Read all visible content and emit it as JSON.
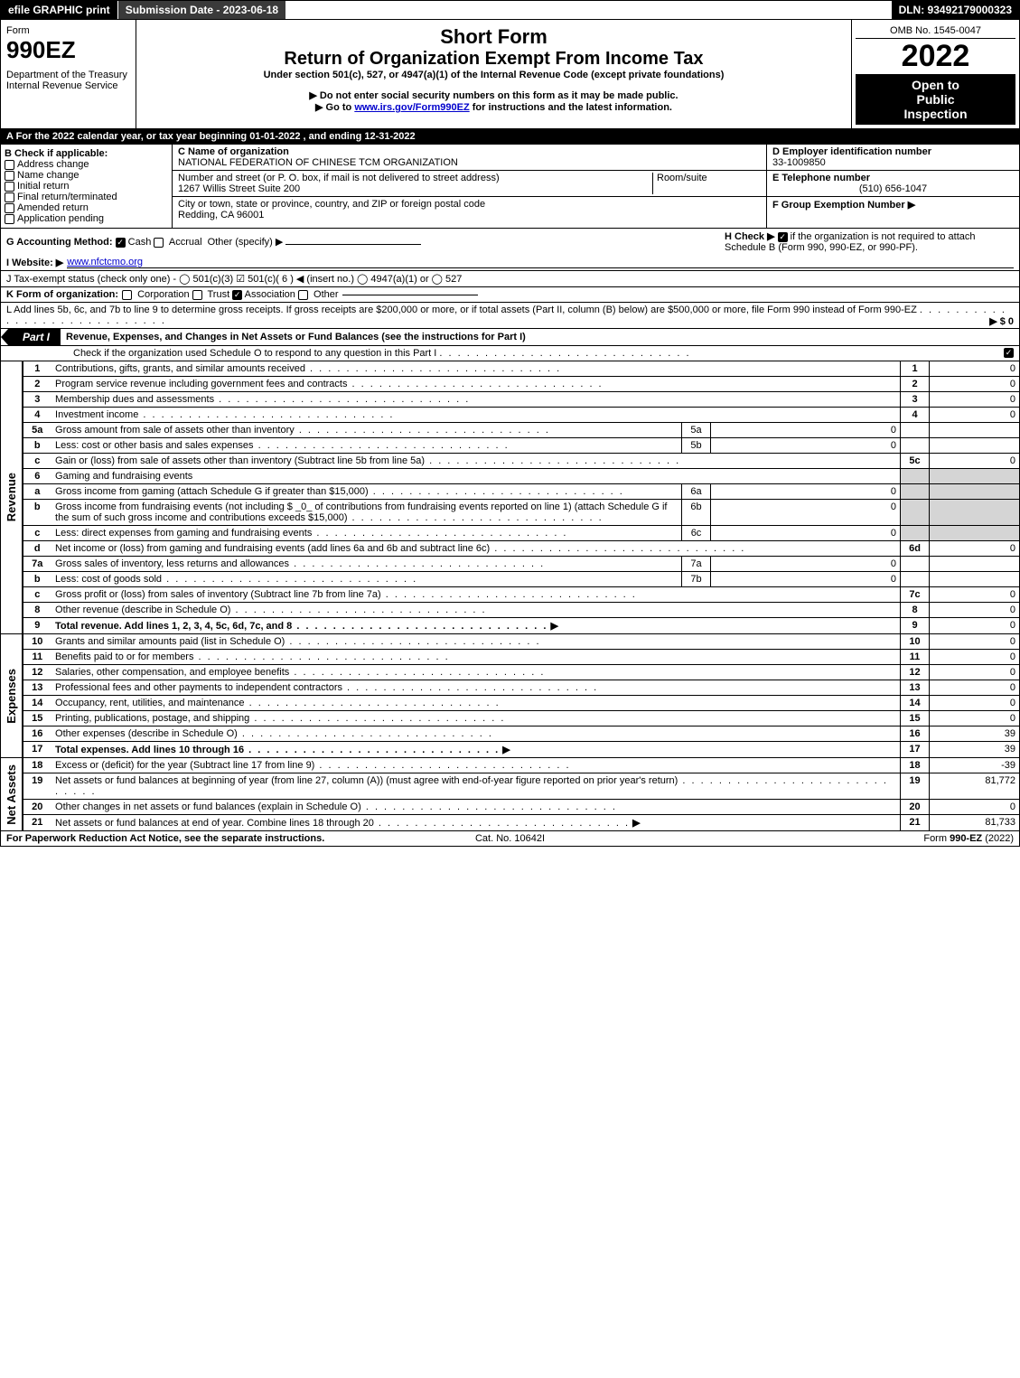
{
  "topbar": {
    "efile": "efile GRAPHIC print",
    "submission_label": "Submission Date - 2023-06-18",
    "dln": "DLN: 93492179000323"
  },
  "header": {
    "form_label": "Form",
    "form_number": "990EZ",
    "dept": "Department of the Treasury",
    "irs": "Internal Revenue Service",
    "short_form": "Short Form",
    "title": "Return of Organization Exempt From Income Tax",
    "subtitle": "Under section 501(c), 527, or 4947(a)(1) of the Internal Revenue Code (except private foundations)",
    "note1": "▶ Do not enter social security numbers on this form as it may be made public.",
    "note2_pre": "▶ Go to ",
    "note2_link": "www.irs.gov/Form990EZ",
    "note2_post": " for instructions and the latest information.",
    "omb": "OMB No. 1545-0047",
    "year": "2022",
    "inspect1": "Open to",
    "inspect2": "Public",
    "inspect3": "Inspection"
  },
  "lineA": "A  For the 2022 calendar year, or tax year beginning 01-01-2022 , and ending 12-31-2022",
  "sectionB": {
    "title": "B  Check if applicable:",
    "items": [
      "Address change",
      "Name change",
      "Initial return",
      "Final return/terminated",
      "Amended return",
      "Application pending"
    ],
    "c_label": "C Name of organization",
    "org_name": "NATIONAL FEDERATION OF CHINESE TCM ORGANIZATION",
    "street_label": "Number and street (or P. O. box, if mail is not delivered to street address)",
    "street": "1267 Willis Street Suite 200",
    "room_label": "Room/suite",
    "city_label": "City or town, state or province, country, and ZIP or foreign postal code",
    "city": "Redding, CA  96001",
    "d_label": "D Employer identification number",
    "ein": "33-1009850",
    "e_label": "E Telephone number",
    "phone": "(510) 656-1047",
    "f_label": "F Group Exemption Number  ▶"
  },
  "lineG": {
    "label": "G Accounting Method:",
    "cash": "Cash",
    "accrual": "Accrual",
    "other": "Other (specify) ▶"
  },
  "lineH": {
    "pre": "H  Check ▶ ",
    "post": " if the organization is not required to attach Schedule B (Form 990, 990-EZ, or 990-PF)."
  },
  "lineI": {
    "label": "I Website: ▶",
    "url": "www.nfctcmo.org"
  },
  "lineJ": "J Tax-exempt status (check only one) -  ◯ 501(c)(3)  ☑ 501(c)( 6 ) ◀ (insert no.)  ◯ 4947(a)(1) or  ◯ 527",
  "lineK": {
    "label": "K Form of organization:",
    "opts": [
      "Corporation",
      "Trust",
      "Association",
      "Other"
    ]
  },
  "lineL": {
    "text": "L Add lines 5b, 6c, and 7b to line 9 to determine gross receipts. If gross receipts are $200,000 or more, or if total assets (Part II, column (B) below) are $500,000 or more, file Form 990 instead of Form 990-EZ",
    "val": "▶ $ 0"
  },
  "part1": {
    "tab": "Part I",
    "title": "Revenue, Expenses, and Changes in Net Assets or Fund Balances (see the instructions for Part I)",
    "check_line": "Check if the organization used Schedule O to respond to any question in this Part I"
  },
  "sections": {
    "revenue": "Revenue",
    "expenses": "Expenses",
    "netassets": "Net Assets"
  },
  "lines": [
    {
      "n": "1",
      "desc": "Contributions, gifts, grants, and similar amounts received",
      "num": "1",
      "val": "0"
    },
    {
      "n": "2",
      "desc": "Program service revenue including government fees and contracts",
      "num": "2",
      "val": "0"
    },
    {
      "n": "3",
      "desc": "Membership dues and assessments",
      "num": "3",
      "val": "0"
    },
    {
      "n": "4",
      "desc": "Investment income",
      "num": "4",
      "val": "0"
    },
    {
      "n": "5a",
      "desc": "Gross amount from sale of assets other than inventory",
      "sub": "5a",
      "subval": "0"
    },
    {
      "n": "b",
      "desc": "Less: cost or other basis and sales expenses",
      "sub": "5b",
      "subval": "0"
    },
    {
      "n": "c",
      "desc": "Gain or (loss) from sale of assets other than inventory (Subtract line 5b from line 5a)",
      "num": "5c",
      "val": "0"
    },
    {
      "n": "6",
      "desc": "Gaming and fundraising events",
      "shade": true
    },
    {
      "n": "a",
      "desc": "Gross income from gaming (attach Schedule G if greater than $15,000)",
      "sub": "6a",
      "subval": "0",
      "shade": true
    },
    {
      "n": "b",
      "desc": "Gross income from fundraising events (not including $ _0_ of contributions from fundraising events reported on line 1) (attach Schedule G if the sum of such gross income and contributions exceeds $15,000)",
      "sub": "6b",
      "subval": "0",
      "shade": true
    },
    {
      "n": "c",
      "desc": "Less: direct expenses from gaming and fundraising events",
      "sub": "6c",
      "subval": "0",
      "shade": true
    },
    {
      "n": "d",
      "desc": "Net income or (loss) from gaming and fundraising events (add lines 6a and 6b and subtract line 6c)",
      "num": "6d",
      "val": "0"
    },
    {
      "n": "7a",
      "desc": "Gross sales of inventory, less returns and allowances",
      "sub": "7a",
      "subval": "0"
    },
    {
      "n": "b",
      "desc": "Less: cost of goods sold",
      "sub": "7b",
      "subval": "0"
    },
    {
      "n": "c",
      "desc": "Gross profit or (loss) from sales of inventory (Subtract line 7b from line 7a)",
      "num": "7c",
      "val": "0"
    },
    {
      "n": "8",
      "desc": "Other revenue (describe in Schedule O)",
      "num": "8",
      "val": "0"
    },
    {
      "n": "9",
      "desc": "Total revenue. Add lines 1, 2, 3, 4, 5c, 6d, 7c, and 8",
      "num": "9",
      "val": "0",
      "bold": true,
      "arrow": true
    }
  ],
  "expenses_lines": [
    {
      "n": "10",
      "desc": "Grants and similar amounts paid (list in Schedule O)",
      "num": "10",
      "val": "0"
    },
    {
      "n": "11",
      "desc": "Benefits paid to or for members",
      "num": "11",
      "val": "0"
    },
    {
      "n": "12",
      "desc": "Salaries, other compensation, and employee benefits",
      "num": "12",
      "val": "0"
    },
    {
      "n": "13",
      "desc": "Professional fees and other payments to independent contractors",
      "num": "13",
      "val": "0"
    },
    {
      "n": "14",
      "desc": "Occupancy, rent, utilities, and maintenance",
      "num": "14",
      "val": "0"
    },
    {
      "n": "15",
      "desc": "Printing, publications, postage, and shipping",
      "num": "15",
      "val": "0"
    },
    {
      "n": "16",
      "desc": "Other expenses (describe in Schedule O)",
      "num": "16",
      "val": "39"
    },
    {
      "n": "17",
      "desc": "Total expenses. Add lines 10 through 16",
      "num": "17",
      "val": "39",
      "bold": true,
      "arrow": true
    }
  ],
  "netassets_lines": [
    {
      "n": "18",
      "desc": "Excess or (deficit) for the year (Subtract line 17 from line 9)",
      "num": "18",
      "val": "-39"
    },
    {
      "n": "19",
      "desc": "Net assets or fund balances at beginning of year (from line 27, column (A)) (must agree with end-of-year figure reported on prior year's return)",
      "num": "19",
      "val": "81,772"
    },
    {
      "n": "20",
      "desc": "Other changes in net assets or fund balances (explain in Schedule O)",
      "num": "20",
      "val": "0"
    },
    {
      "n": "21",
      "desc": "Net assets or fund balances at end of year. Combine lines 18 through 20",
      "num": "21",
      "val": "81,733",
      "arrow": true
    }
  ],
  "footer": {
    "left": "For Paperwork Reduction Act Notice, see the separate instructions.",
    "mid": "Cat. No. 10642I",
    "right_pre": "Form ",
    "right_bold": "990-EZ",
    "right_post": " (2022)"
  }
}
